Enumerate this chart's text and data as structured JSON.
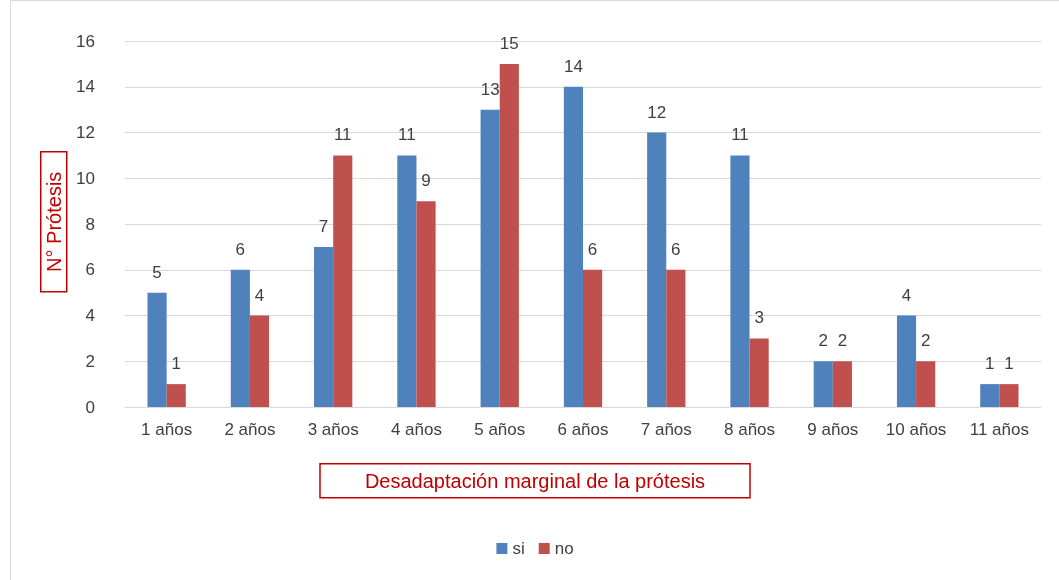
{
  "chart_data": {
    "type": "bar",
    "xlabel": "Desadaptación marginal de la prótesis",
    "ylabel": "N° Prótesis",
    "categories": [
      "1 años",
      "2 años",
      "3 años",
      "4 años",
      "5 años",
      "6 años",
      "7 años",
      "8 años",
      "9 años",
      "10 años",
      "11 años"
    ],
    "series": [
      {
        "name": "si",
        "color": "#4f81bd",
        "values": [
          5,
          6,
          7,
          11,
          13,
          14,
          12,
          11,
          2,
          4,
          1
        ]
      },
      {
        "name": "no",
        "color": "#c0504d",
        "values": [
          1,
          4,
          11,
          9,
          15,
          6,
          6,
          3,
          2,
          2,
          1
        ]
      }
    ],
    "ylim": [
      0,
      16
    ],
    "yticks": [
      0,
      2,
      4,
      6,
      8,
      10,
      12,
      14,
      16
    ],
    "grid": "y",
    "legend": "bottom",
    "data_labels": true
  }
}
